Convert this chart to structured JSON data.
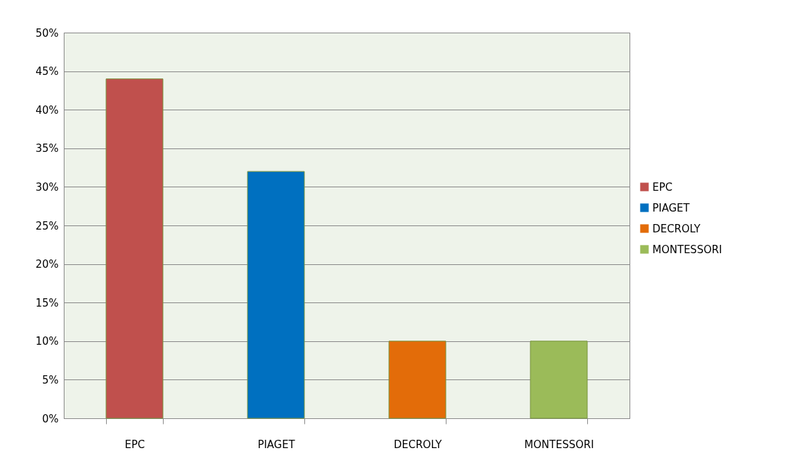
{
  "chart_data": {
    "type": "bar",
    "categories": [
      "EPC",
      "PIAGET",
      "DECROLY",
      "MONTESSORI"
    ],
    "series": [
      {
        "name": "EPC",
        "color": "#c0504d",
        "values": [
          44,
          null,
          null,
          null
        ]
      },
      {
        "name": "PIAGET",
        "color": "#0070c0",
        "values": [
          null,
          32,
          null,
          null
        ]
      },
      {
        "name": "DECROLY",
        "color": "#e36c09",
        "values": [
          null,
          null,
          10,
          null
        ]
      },
      {
        "name": "MONTESSORI",
        "color": "#9bbb59",
        "values": [
          null,
          null,
          null,
          10
        ]
      }
    ],
    "ylim": [
      0,
      50
    ],
    "yticks": [
      {
        "value": 0,
        "label": "0%"
      },
      {
        "value": 5,
        "label": "5%"
      },
      {
        "value": 10,
        "label": "10%"
      },
      {
        "value": 15,
        "label": "15%"
      },
      {
        "value": 20,
        "label": "20%"
      },
      {
        "value": 25,
        "label": "25%"
      },
      {
        "value": 30,
        "label": "30%"
      },
      {
        "value": 35,
        "label": "35%"
      },
      {
        "value": 40,
        "label": "40%"
      },
      {
        "value": 45,
        "label": "45%"
      },
      {
        "value": 50,
        "label": "50%"
      }
    ],
    "grid": "y",
    "legend": "right"
  }
}
